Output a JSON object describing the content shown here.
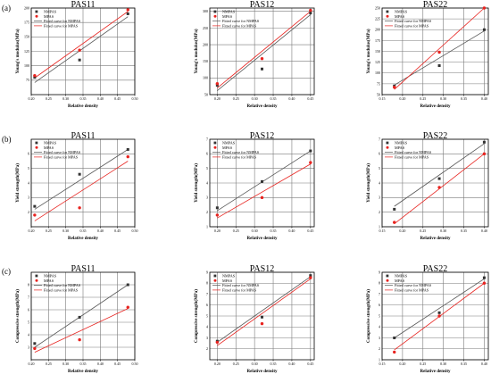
{
  "figure": {
    "row_labels": [
      "(a)",
      "(b)",
      "(c)"
    ]
  },
  "legend": {
    "nmpas": "NMPAS",
    "mpas": "MPAS",
    "fit_nmpas": "Fitted curve for NMPAS",
    "fit_mpas": "Fitted curve for MPAS"
  },
  "colors": {
    "nmpas": "#333333",
    "mpas": "#e8231f",
    "fit_nmpas": "#555555",
    "fit_mpas": "#e8231f",
    "grid": "#7a7a7a",
    "frame": "#000000"
  },
  "chart_data": [
    {
      "type": "scatter",
      "title": "PAS11",
      "xlabel": "Relative density",
      "ylabel": "Young's modulus(MPa)",
      "xlim": [
        0.2,
        0.5
      ],
      "ylim": [
        50,
        200
      ],
      "xticks": [
        0.2,
        0.25,
        0.3,
        0.35,
        0.4,
        0.45,
        0.5
      ],
      "xtick_labels": [
        "0.20",
        "0.25",
        "0.30",
        "0.35",
        "0.40",
        "0.45",
        "0.50"
      ],
      "yticks": [
        75,
        100,
        125,
        150,
        175,
        200
      ],
      "ytick_labels": [
        "75",
        "100",
        "125",
        "150",
        "175",
        "200"
      ],
      "grid": true,
      "legend_position": "top-left",
      "series": [
        {
          "name": "NMPAS",
          "points": [
            [
              0.21,
              80
            ],
            [
              0.34,
              110
            ],
            [
              0.48,
              190
            ]
          ]
        },
        {
          "name": "MPAS",
          "points": [
            [
              0.21,
              83
            ],
            [
              0.34,
              127
            ],
            [
              0.48,
              197
            ]
          ]
        }
      ],
      "fits": [
        {
          "name": "Fitted curve for NMPAS",
          "x": [
            0.21,
            0.48
          ],
          "y": [
            71,
            185
          ]
        },
        {
          "name": "Fitted curve for MPAS",
          "x": [
            0.21,
            0.48
          ],
          "y": [
            79,
            194
          ]
        }
      ]
    },
    {
      "type": "scatter",
      "title": "PAS12",
      "xlabel": "Relative density",
      "ylabel": "Young's modulus(MPa)",
      "xlim": [
        0.18,
        0.46
      ],
      "ylim": [
        50,
        310
      ],
      "xticks": [
        0.2,
        0.25,
        0.3,
        0.35,
        0.4,
        0.45
      ],
      "xtick_labels": [
        "0.20",
        "0.25",
        "0.30",
        "0.35",
        "0.40",
        "0.45"
      ],
      "yticks": [
        50,
        100,
        150,
        200,
        250,
        300
      ],
      "ytick_labels": [
        "50",
        "100",
        "150",
        "200",
        "250",
        "300"
      ],
      "grid": true,
      "legend_position": "top-left",
      "series": [
        {
          "name": "NMPAS",
          "points": [
            [
              0.2,
              78
            ],
            [
              0.32,
              127
            ],
            [
              0.45,
              295
            ]
          ]
        },
        {
          "name": "MPAS",
          "points": [
            [
              0.2,
              83
            ],
            [
              0.32,
              158
            ],
            [
              0.45,
              303
            ]
          ]
        }
      ],
      "fits": [
        {
          "name": "Fitted curve for NMPAS",
          "x": [
            0.2,
            0.45
          ],
          "y": [
            62,
            290
          ]
        },
        {
          "name": "Fitted curve for MPAS",
          "x": [
            0.2,
            0.45
          ],
          "y": [
            70,
            300
          ]
        }
      ]
    },
    {
      "type": "scatter",
      "title": "PAS22",
      "xlabel": "Relative density",
      "ylabel": "Young's modulus(MPa)",
      "xlim": [
        0.15,
        0.41
      ],
      "ylim": [
        50,
        250
      ],
      "xticks": [
        0.15,
        0.2,
        0.25,
        0.3,
        0.35,
        0.4
      ],
      "xtick_labels": [
        "0.15",
        "0.20",
        "0.25",
        "0.30",
        "0.35",
        "0.40"
      ],
      "yticks": [
        50,
        75,
        100,
        125,
        150,
        175,
        200,
        225,
        250
      ],
      "ytick_labels": [
        "50",
        "75",
        "100",
        "125",
        "150",
        "175",
        "200",
        "225",
        "250"
      ],
      "grid": true,
      "legend_position": "top-left",
      "series": [
        {
          "name": "NMPAS",
          "points": [
            [
              0.18,
              70
            ],
            [
              0.29,
              117
            ],
            [
              0.4,
              200
            ]
          ]
        },
        {
          "name": "MPAS",
          "points": [
            [
              0.18,
              67
            ],
            [
              0.29,
              148
            ],
            [
              0.4,
              250
            ]
          ]
        }
      ],
      "fits": [
        {
          "name": "Fitted curve for NMPAS",
          "x": [
            0.18,
            0.4
          ],
          "y": [
            72,
            197
          ]
        },
        {
          "name": "Fitted curve for MPAS",
          "x": [
            0.18,
            0.4
          ],
          "y": [
            62,
            250
          ]
        }
      ]
    },
    {
      "type": "scatter",
      "title": "PAS11",
      "xlabel": "Relative density",
      "ylabel": "Yield strength(MPa)",
      "xlim": [
        0.2,
        0.5
      ],
      "ylim": [
        1,
        7
      ],
      "xticks": [
        0.2,
        0.25,
        0.3,
        0.35,
        0.4,
        0.45,
        0.5
      ],
      "xtick_labels": [
        "0.20",
        "0.25",
        "0.30",
        "0.35",
        "0.40",
        "0.45",
        "0.50"
      ],
      "yticks": [
        2,
        3,
        4,
        5,
        6
      ],
      "ytick_labels": [
        "2",
        "3",
        "4",
        "5",
        "6"
      ],
      "grid": true,
      "legend_position": "top-left",
      "series": [
        {
          "name": "NMPAS",
          "points": [
            [
              0.21,
              2.4
            ],
            [
              0.34,
              4.6
            ],
            [
              0.48,
              6.3
            ]
          ]
        },
        {
          "name": "MPAS",
          "points": [
            [
              0.21,
              1.8
            ],
            [
              0.34,
              2.3
            ],
            [
              0.48,
              5.8
            ]
          ]
        }
      ],
      "fits": [
        {
          "name": "Fitted curve for NMPAS",
          "x": [
            0.21,
            0.48
          ],
          "y": [
            2.2,
            6.3
          ]
        },
        {
          "name": "Fitted curve for MPAS",
          "x": [
            0.21,
            0.48
          ],
          "y": [
            1.4,
            5.5
          ]
        }
      ]
    },
    {
      "type": "scatter",
      "title": "PAS12",
      "xlabel": "Relative density",
      "ylabel": "Yield strength(MPa)",
      "xlim": [
        0.18,
        0.46
      ],
      "ylim": [
        1,
        7
      ],
      "xticks": [
        0.2,
        0.25,
        0.3,
        0.35,
        0.4,
        0.45
      ],
      "xtick_labels": [
        "0.20",
        "0.25",
        "0.30",
        "0.35",
        "0.40",
        "0.45"
      ],
      "yticks": [
        1,
        2,
        3,
        4,
        5,
        6,
        7
      ],
      "ytick_labels": [
        "1",
        "2",
        "3",
        "4",
        "5",
        "6",
        "7"
      ],
      "grid": true,
      "legend_position": "top-left",
      "series": [
        {
          "name": "NMPAS",
          "points": [
            [
              0.2,
              2.3
            ],
            [
              0.32,
              4.1
            ],
            [
              0.45,
              6.2
            ]
          ]
        },
        {
          "name": "MPAS",
          "points": [
            [
              0.2,
              1.8
            ],
            [
              0.32,
              3.0
            ],
            [
              0.45,
              5.4
            ]
          ]
        }
      ],
      "fits": [
        {
          "name": "Fitted curve for NMPAS",
          "x": [
            0.2,
            0.45
          ],
          "y": [
            2.1,
            6.2
          ]
        },
        {
          "name": "Fitted curve for MPAS",
          "x": [
            0.2,
            0.45
          ],
          "y": [
            1.6,
            5.3
          ]
        }
      ]
    },
    {
      "type": "scatter",
      "title": "PAS22",
      "xlabel": "Relative density",
      "ylabel": "Yield strength(MPa)",
      "xlim": [
        0.15,
        0.41
      ],
      "ylim": [
        1,
        7
      ],
      "xticks": [
        0.15,
        0.2,
        0.25,
        0.3,
        0.35,
        0.4
      ],
      "xtick_labels": [
        "0.15",
        "0.20",
        "0.25",
        "0.30",
        "0.35",
        "0.40"
      ],
      "yticks": [
        1,
        2,
        3,
        4,
        5,
        6,
        7
      ],
      "ytick_labels": [
        "1",
        "2",
        "3",
        "4",
        "5",
        "6",
        "7"
      ],
      "grid": true,
      "legend_position": "top-left",
      "series": [
        {
          "name": "NMPAS",
          "points": [
            [
              0.18,
              2.2
            ],
            [
              0.29,
              4.3
            ],
            [
              0.4,
              6.8
            ]
          ]
        },
        {
          "name": "MPAS",
          "points": [
            [
              0.18,
              1.3
            ],
            [
              0.29,
              3.7
            ],
            [
              0.4,
              6.0
            ]
          ]
        }
      ],
      "fits": [
        {
          "name": "Fitted curve for NMPAS",
          "x": [
            0.18,
            0.4
          ],
          "y": [
            2.4,
            6.7
          ]
        },
        {
          "name": "Fitted curve for MPAS",
          "x": [
            0.18,
            0.4
          ],
          "y": [
            1.2,
            6.0
          ]
        }
      ]
    },
    {
      "type": "scatter",
      "title": "PAS11",
      "xlabel": "Relative density",
      "ylabel": "Compressive strength(MPa)",
      "xlim": [
        0.2,
        0.5
      ],
      "ylim": [
        2,
        9
      ],
      "xticks": [
        0.2,
        0.25,
        0.3,
        0.35,
        0.4,
        0.45,
        0.5
      ],
      "xtick_labels": [
        "0.20",
        "0.25",
        "0.30",
        "0.35",
        "0.40",
        "0.45",
        "0.50"
      ],
      "yticks": [
        3,
        4,
        5,
        6,
        7,
        8
      ],
      "ytick_labels": [
        "3",
        "4",
        "5",
        "6",
        "7",
        "8"
      ],
      "grid": true,
      "legend_position": "top-left",
      "series": [
        {
          "name": "NMPAS",
          "points": [
            [
              0.21,
              3.3
            ],
            [
              0.34,
              5.4
            ],
            [
              0.48,
              8.0
            ]
          ]
        },
        {
          "name": "MPAS",
          "points": [
            [
              0.21,
              2.9
            ],
            [
              0.34,
              3.6
            ],
            [
              0.48,
              6.2
            ]
          ]
        }
      ],
      "fits": [
        {
          "name": "Fitted curve for NMPAS",
          "x": [
            0.21,
            0.48
          ],
          "y": [
            3.0,
            8.0
          ]
        },
        {
          "name": "Fitted curve for MPAS",
          "x": [
            0.21,
            0.48
          ],
          "y": [
            2.6,
            6.1
          ]
        }
      ]
    },
    {
      "type": "scatter",
      "title": "PAS12",
      "xlabel": "Relative density",
      "ylabel": "Compressive strength(MPa)",
      "xlim": [
        0.18,
        0.46
      ],
      "ylim": [
        1,
        9
      ],
      "xticks": [
        0.2,
        0.25,
        0.3,
        0.35,
        0.4,
        0.45
      ],
      "xtick_labels": [
        "0.20",
        "0.25",
        "0.30",
        "0.35",
        "0.40",
        "0.45"
      ],
      "yticks": [
        2,
        3,
        4,
        5,
        6,
        7,
        8,
        9
      ],
      "ytick_labels": [
        "2",
        "3",
        "4",
        "5",
        "6",
        "7",
        "8",
        "9"
      ],
      "grid": true,
      "legend_position": "top-left",
      "series": [
        {
          "name": "NMPAS",
          "points": [
            [
              0.2,
              2.7
            ],
            [
              0.32,
              4.9
            ],
            [
              0.45,
              8.7
            ]
          ]
        },
        {
          "name": "MPAS",
          "points": [
            [
              0.2,
              2.6
            ],
            [
              0.32,
              4.3
            ],
            [
              0.45,
              8.5
            ]
          ]
        }
      ],
      "fits": [
        {
          "name": "Fitted curve for NMPAS",
          "x": [
            0.2,
            0.45
          ],
          "y": [
            2.6,
            8.6
          ]
        },
        {
          "name": "Fitted curve for MPAS",
          "x": [
            0.2,
            0.45
          ],
          "y": [
            2.3,
            8.4
          ]
        }
      ]
    },
    {
      "type": "scatter",
      "title": "PAS22",
      "xlabel": "Relative density",
      "ylabel": "Compressive strength(MPa)",
      "xlim": [
        0.15,
        0.41
      ],
      "ylim": [
        1,
        9
      ],
      "xticks": [
        0.15,
        0.2,
        0.25,
        0.3,
        0.35,
        0.4
      ],
      "xtick_labels": [
        "0.15",
        "0.20",
        "0.25",
        "0.30",
        "0.35",
        "0.40"
      ],
      "yticks": [
        1,
        2,
        3,
        4,
        5,
        6,
        7,
        8,
        9
      ],
      "ytick_labels": [
        "1",
        "2",
        "3",
        "4",
        "5",
        "6",
        "7",
        "8",
        "9"
      ],
      "grid": true,
      "legend_position": "top-left",
      "series": [
        {
          "name": "NMPAS",
          "points": [
            [
              0.18,
              3.0
            ],
            [
              0.29,
              5.3
            ],
            [
              0.4,
              8.5
            ]
          ]
        },
        {
          "name": "MPAS",
          "points": [
            [
              0.18,
              1.7
            ],
            [
              0.29,
              5.0
            ],
            [
              0.4,
              8.0
            ]
          ]
        }
      ],
      "fits": [
        {
          "name": "Fitted curve for NMPAS",
          "x": [
            0.18,
            0.4
          ],
          "y": [
            3.0,
            8.4
          ]
        },
        {
          "name": "Fitted curve for MPAS",
          "x": [
            0.18,
            0.4
          ],
          "y": [
            1.9,
            8.0
          ]
        }
      ]
    }
  ]
}
